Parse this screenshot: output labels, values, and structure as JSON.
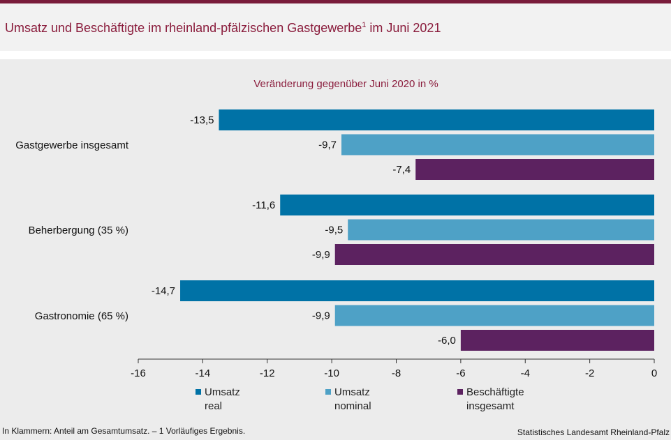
{
  "header": {
    "title": "Umsatz und Beschäftigte im rheinland-pfälzischen Gastgewerbe",
    "title_sup": "1",
    "title_suffix": " im Juni 2021"
  },
  "chart_data": {
    "type": "bar",
    "orientation": "horizontal",
    "title": "Umsatz und Beschäftigte im rheinland-pfälzischen Gastgewerbe1 im Juni 2021",
    "subtitle": "Veränderung gegenüber Juni 2020 in %",
    "categories": [
      "Gastgewerbe insgesamt",
      "Beherbergung (35 %)",
      "Gastronomie (65 %)"
    ],
    "series": [
      {
        "name": "Umsatz real",
        "values": [
          -13.5,
          -11.6,
          -14.7
        ],
        "labels": [
          "-13,5",
          "-11,6",
          "-14,7"
        ],
        "color": "#0072a6"
      },
      {
        "name": "Umsatz nominal",
        "values": [
          -9.7,
          -9.5,
          -9.9
        ],
        "labels": [
          "-9,7",
          "-9,5",
          "-9,9"
        ],
        "color": "#4ea1c6"
      },
      {
        "name": "Beschäftigte insgesamt",
        "values": [
          -7.4,
          -9.9,
          -6.0
        ],
        "labels": [
          "-7,4",
          "-9,9",
          "-6,0"
        ],
        "color": "#5c2260"
      }
    ],
    "xlim": [
      -16,
      0
    ],
    "xticks": [
      -16,
      -14,
      -12,
      -10,
      -8,
      -6,
      -4,
      -2,
      0
    ],
    "xtick_labels": [
      "-16",
      "-14",
      "-12",
      "-10",
      "-8",
      "-6",
      "-4",
      "-2",
      "0"
    ],
    "grid": false,
    "legend_position": "bottom"
  },
  "legend": [
    {
      "line1": "Umsatz",
      "line2": "real",
      "color": "#0072a6"
    },
    {
      "line1": "Umsatz",
      "line2": "nominal",
      "color": "#4ea1c6"
    },
    {
      "line1": "Beschäftigte",
      "line2": "insgesamt",
      "color": "#5c2260"
    }
  ],
  "footer": {
    "note": "In Klammern: Anteil am Gesamtumsatz. – 1 Vorläufiges Ergebnis.",
    "source": "Statistisches Landesamt Rheinland-Pfalz"
  }
}
